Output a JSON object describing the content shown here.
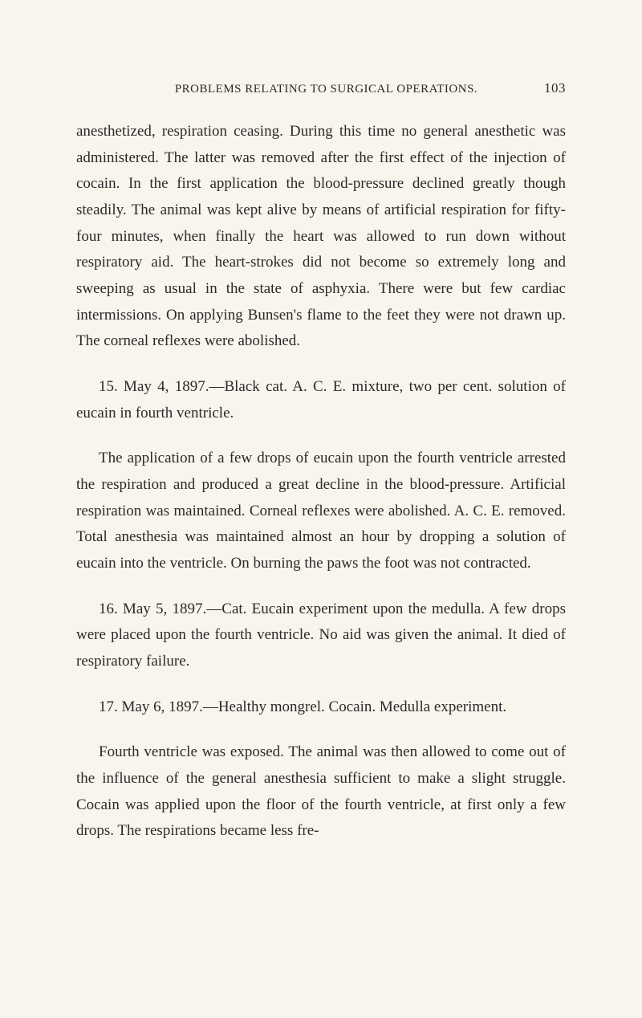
{
  "header": {
    "title": "PROBLEMS RELATING TO SURGICAL OPERATIONS.",
    "page_number": "103"
  },
  "paragraphs": {
    "p1": "anesthetized, respiration ceasing. During this time no general anesthetic was administered. The latter was re­moved after the first effect of the injection of cocain. In the first application the blood-pressure declined greatly though steadily. The animal was kept alive by means of artificial respiration for fifty-four minutes, when finally the heart was allowed to run down without respiratory aid. The heart-strokes did not become so extremely long and sweeping as usual in the state of asphyxia. There were but few cardiac intermissions. On applying Bun­sen's flame to the feet they were not drawn up. The corneal reflexes were abolished.",
    "p2": "15. May 4, 1897.—Black cat. A. C. E. mixture, two per cent. solution of eucain in fourth ventricle.",
    "p3": "The application of a few drops of eucain upon the fourth ventricle arrested the respiration and produced a great decline in the blood-pressure. Artificial respira­tion was maintained. Corneal reflexes were abolished. A. C. E. removed. Total anesthesia was maintained almost an hour by dropping a solution of eucain into the ven­tricle. On burning the paws the foot was not contracted.",
    "p4": "16. May 5, 1897.—Cat. Eucain experiment upon the medulla. A few drops were placed upon the fourth ven­tricle. No aid was given the animal. It died of respi­ratory failure.",
    "p5": "17. May 6, 1897.—Healthy mongrel. Cocain. Medulla experiment.",
    "p6": "Fourth ventricle was exposed. The animal was then allowed to come out of the influence of the general anes­thesia sufficient to make a slight struggle. Cocain was applied upon the floor of the fourth ventricle, at first only a few drops. The respirations became less fre-"
  }
}
